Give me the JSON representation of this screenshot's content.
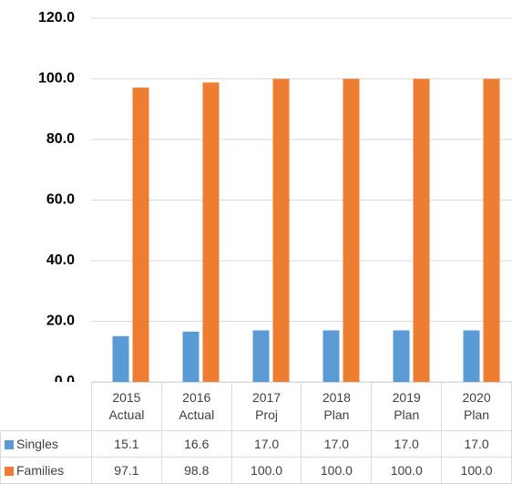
{
  "chart_data": {
    "type": "bar",
    "categories": [
      "2015\nActual",
      "2016\nActual",
      "2017\nProj",
      "2018\nPlan",
      "2019\nPlan",
      "2020\nPlan"
    ],
    "series": [
      {
        "name": "Singles",
        "color": "#5b9bd5",
        "values": [
          15.1,
          16.6,
          17.0,
          17.0,
          17.0,
          17.0
        ],
        "value_labels": [
          "15.1",
          "16.6",
          "17.0",
          "17.0",
          "17.0",
          "17.0"
        ]
      },
      {
        "name": "Families",
        "color": "#ed7d31",
        "values": [
          97.1,
          98.8,
          100.0,
          100.0,
          100.0,
          100.0
        ],
        "value_labels": [
          "97.1",
          "98.8",
          "100.0",
          "100.0",
          "100.0",
          "100.0"
        ]
      }
    ],
    "ylim": [
      0,
      120
    ],
    "yticks": [
      {
        "value": 0,
        "label": "0.0"
      },
      {
        "value": 20,
        "label": "20.0"
      },
      {
        "value": 40,
        "label": "40.0"
      },
      {
        "value": 60,
        "label": "60.0"
      },
      {
        "value": 80,
        "label": "80.0"
      },
      {
        "value": 100,
        "label": "100.0"
      },
      {
        "value": 120,
        "label": "120.0"
      }
    ],
    "grid": true
  }
}
